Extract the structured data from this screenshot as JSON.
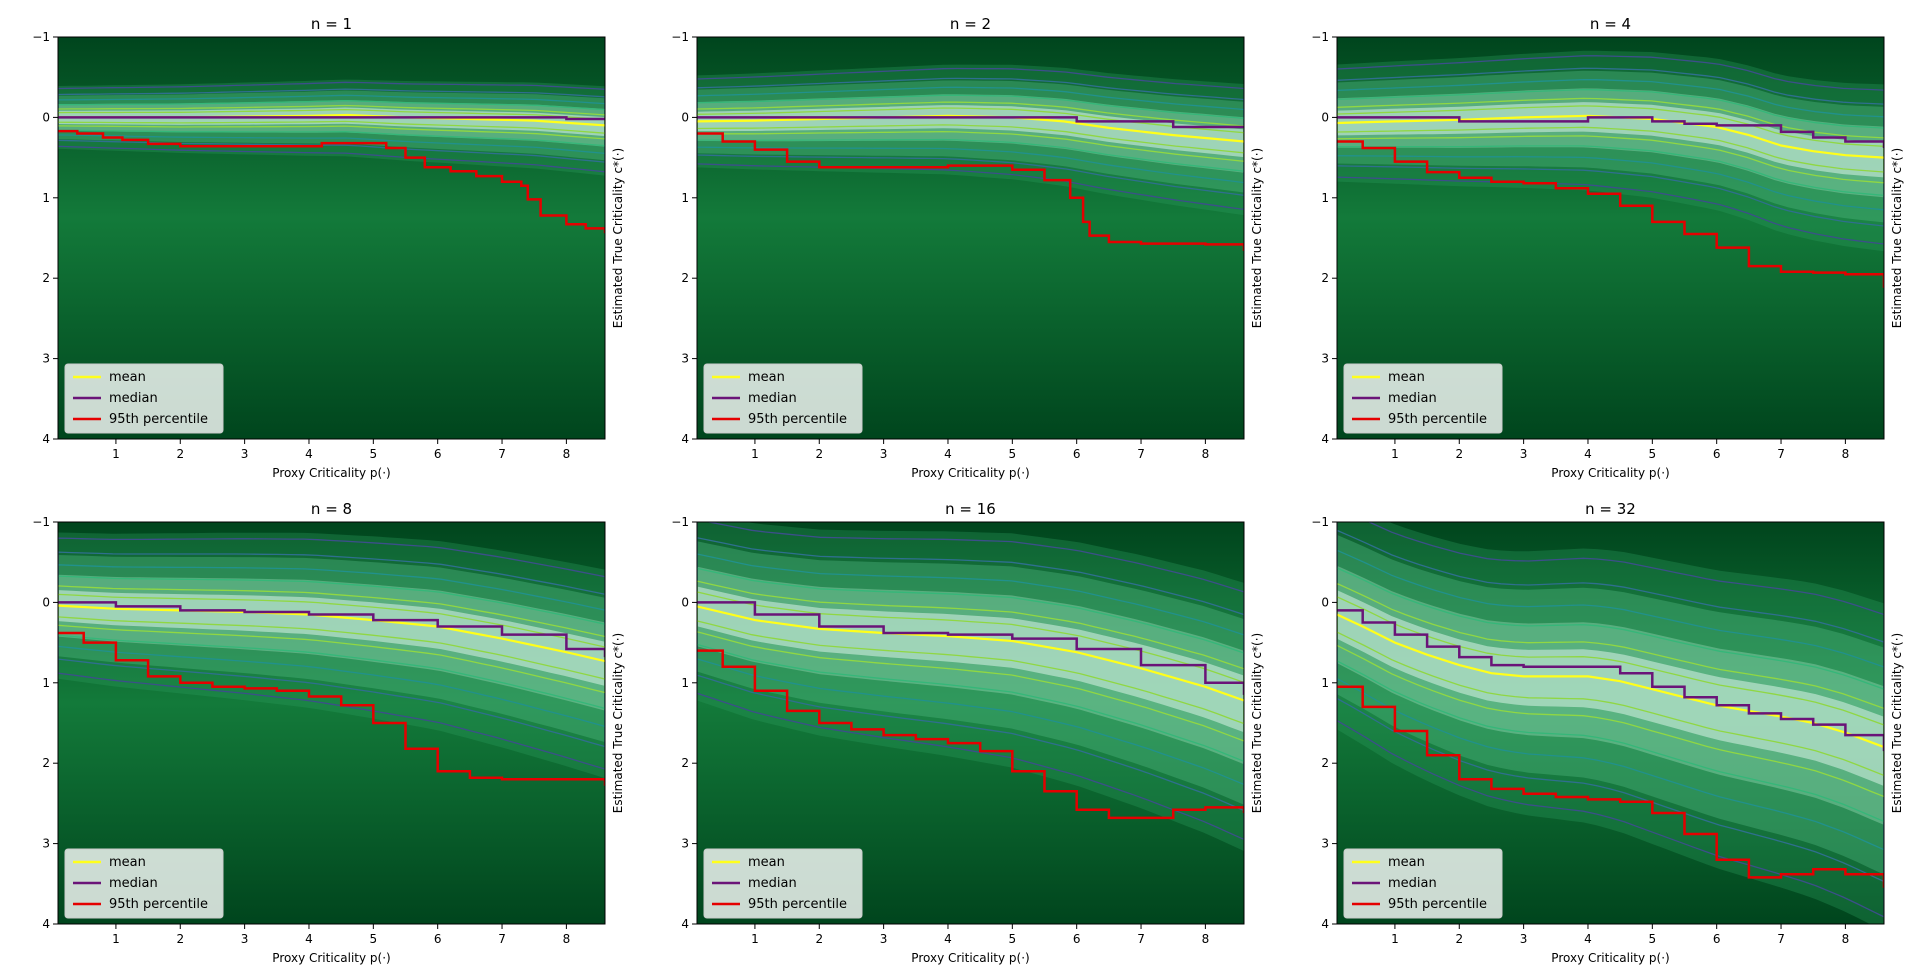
{
  "figure": {
    "colors": {
      "mean": "#ffff1a",
      "median": "#6a1478",
      "p95": "#e50000",
      "bg_dark": "#00451d",
      "bg_mid": "#137a3a",
      "bg_light": "#cdeee0",
      "contour": [
        "#3c4f8a",
        "#2f6f8e",
        "#21918c",
        "#35b779",
        "#90d743"
      ]
    }
  },
  "chart_data": [
    {
      "type": "heatmap",
      "title": "n = 1",
      "xlabel": "Proxy Criticality p(·)",
      "ylabel": "Estimated True Criticality c*(·)",
      "xlim": [
        0.1,
        8.6
      ],
      "ylim": [
        4,
        -1
      ],
      "xticks": [
        "1",
        "2",
        "3",
        "4",
        "5",
        "6",
        "7",
        "8"
      ],
      "yticks": [
        "−1",
        "0",
        "1",
        "2",
        "3",
        "4"
      ],
      "legend": [
        "mean",
        "median",
        "95th percentile"
      ],
      "band_spread": 0.15,
      "series": [
        {
          "name": "mean",
          "x": [
            0.1,
            1,
            2,
            3,
            4,
            4.6,
            5.5,
            6.5,
            7.5,
            8.6
          ],
          "values": [
            0,
            0,
            0,
            -0.01,
            -0.02,
            -0.03,
            0,
            0.02,
            0.04,
            0.1
          ]
        },
        {
          "name": "median",
          "x": [
            0.1,
            2,
            4,
            6,
            8,
            8.6
          ],
          "values": [
            0,
            0,
            0,
            0,
            0.02,
            0.02
          ]
        },
        {
          "name": "95th percentile",
          "x": [
            0.1,
            0.4,
            0.8,
            1.1,
            1.5,
            2,
            3,
            4,
            4.2,
            5,
            5.2,
            5.5,
            5.8,
            6.2,
            6.6,
            7,
            7.3,
            7.4,
            7.6,
            8,
            8.3,
            8.6
          ],
          "values": [
            0.17,
            0.2,
            0.25,
            0.28,
            0.33,
            0.36,
            0.36,
            0.36,
            0.32,
            0.32,
            0.38,
            0.5,
            0.62,
            0.67,
            0.73,
            0.8,
            0.85,
            1.02,
            1.22,
            1.33,
            1.38,
            1.44
          ]
        }
      ]
    },
    {
      "type": "heatmap",
      "title": "n = 2",
      "xlabel": "Proxy Criticality p(·)",
      "ylabel": "Estimated True Criticality c*(·)",
      "xlim": [
        0.1,
        8.6
      ],
      "ylim": [
        4,
        -1
      ],
      "xticks": [
        "1",
        "2",
        "3",
        "4",
        "5",
        "6",
        "7",
        "8"
      ],
      "yticks": [
        "−1",
        "0",
        "1",
        "2",
        "3",
        "4"
      ],
      "legend": [
        "mean",
        "median",
        "95th percentile"
      ],
      "band_spread": 0.22,
      "series": [
        {
          "name": "mean",
          "x": [
            0.1,
            1,
            2,
            3,
            4,
            5,
            5.8,
            6.5,
            7.5,
            8.6
          ],
          "values": [
            0.05,
            0.04,
            0.02,
            0,
            -0.02,
            0,
            0.05,
            0.13,
            0.22,
            0.3
          ]
        },
        {
          "name": "median",
          "x": [
            0.1,
            2,
            4,
            5.8,
            6,
            7.5,
            8.6
          ],
          "values": [
            0,
            0,
            0,
            0,
            0.05,
            0.12,
            0.12
          ]
        },
        {
          "name": "95th percentile",
          "x": [
            0.1,
            0.5,
            1,
            1.5,
            2,
            3,
            4,
            4.5,
            5,
            5.5,
            5.9,
            6.1,
            6.2,
            6.5,
            7,
            7.5,
            8,
            8.6
          ],
          "values": [
            0.2,
            0.3,
            0.4,
            0.55,
            0.62,
            0.62,
            0.6,
            0.6,
            0.65,
            0.78,
            1.0,
            1.3,
            1.47,
            1.55,
            1.57,
            1.57,
            1.58,
            1.66
          ]
        }
      ]
    },
    {
      "type": "heatmap",
      "title": "n = 4",
      "xlabel": "Proxy Criticality p(·)",
      "ylabel": "Estimated True Criticality c*(·)",
      "xlim": [
        0.1,
        8.6
      ],
      "ylim": [
        4,
        -1
      ],
      "xticks": [
        "1",
        "2",
        "3",
        "4",
        "5",
        "6",
        "7",
        "8"
      ],
      "yticks": [
        "−1",
        "0",
        "1",
        "2",
        "3",
        "4"
      ],
      "legend": [
        "mean",
        "median",
        "95th percentile"
      ],
      "band_spread": 0.28,
      "series": [
        {
          "name": "mean",
          "x": [
            0.1,
            1,
            2,
            3,
            4,
            5,
            6,
            6.5,
            7,
            7.5,
            8,
            8.6
          ],
          "values": [
            0.07,
            0.05,
            0.03,
            0,
            -0.02,
            0.02,
            0.12,
            0.22,
            0.35,
            0.42,
            0.47,
            0.5
          ]
        },
        {
          "name": "median",
          "x": [
            0.1,
            1,
            1.7,
            2,
            3,
            4,
            5,
            5.5,
            6,
            7,
            7.5,
            8,
            8.6
          ],
          "values": [
            0,
            0,
            0,
            0.05,
            0.05,
            0,
            0.05,
            0.08,
            0.1,
            0.18,
            0.25,
            0.3,
            0.38
          ]
        },
        {
          "name": "95th percentile",
          "x": [
            0.1,
            0.5,
            1,
            1.5,
            2,
            2.5,
            3,
            3.5,
            4,
            4.5,
            5,
            5.5,
            6,
            6.5,
            7,
            7.5,
            8,
            8.6
          ],
          "values": [
            0.3,
            0.38,
            0.55,
            0.68,
            0.75,
            0.8,
            0.82,
            0.88,
            0.95,
            1.1,
            1.3,
            1.45,
            1.62,
            1.85,
            1.92,
            1.93,
            1.95,
            2.12
          ]
        }
      ]
    },
    {
      "type": "heatmap",
      "title": "n = 8",
      "xlabel": "Proxy Criticality p(·)",
      "ylabel": "Estimated True Criticality c*(·)",
      "xlim": [
        0.1,
        8.6
      ],
      "ylim": [
        4,
        -1
      ],
      "xticks": [
        "1",
        "2",
        "3",
        "4",
        "5",
        "6",
        "7",
        "8"
      ],
      "yticks": [
        "−1",
        "0",
        "1",
        "2",
        "3",
        "4"
      ],
      "legend": [
        "mean",
        "median",
        "95th percentile"
      ],
      "band_spread": 0.35,
      "series": [
        {
          "name": "mean",
          "x": [
            0.1,
            1,
            2,
            3,
            4,
            5,
            6,
            7,
            8,
            8.6
          ],
          "values": [
            0.04,
            0.08,
            0.1,
            0.12,
            0.15,
            0.22,
            0.3,
            0.45,
            0.62,
            0.73
          ]
        },
        {
          "name": "median",
          "x": [
            0.1,
            1,
            2,
            3,
            4,
            5,
            6,
            7,
            8,
            8.6
          ],
          "values": [
            0,
            0.05,
            0.1,
            0.12,
            0.15,
            0.22,
            0.3,
            0.4,
            0.58,
            0.68
          ]
        },
        {
          "name": "95th percentile",
          "x": [
            0.1,
            0.5,
            1,
            1.5,
            2,
            2.5,
            3,
            3.5,
            4,
            4.5,
            5,
            5.5,
            6,
            6.5,
            7,
            7.5,
            8,
            8.6
          ],
          "values": [
            0.38,
            0.5,
            0.72,
            0.92,
            1.0,
            1.05,
            1.07,
            1.1,
            1.17,
            1.28,
            1.5,
            1.82,
            2.1,
            2.18,
            2.2,
            2.2,
            2.2,
            2.28
          ]
        }
      ]
    },
    {
      "type": "heatmap",
      "title": "n = 16",
      "xlabel": "Proxy Criticality p(·)",
      "ylabel": "Estimated True Criticality c*(·)",
      "xlim": [
        0.1,
        8.6
      ],
      "ylim": [
        4,
        -1
      ],
      "xticks": [
        "1",
        "2",
        "3",
        "4",
        "5",
        "6",
        "7",
        "8"
      ],
      "yticks": [
        "−1",
        "0",
        "1",
        "2",
        "3",
        "4"
      ],
      "legend": [
        "mean",
        "median",
        "95th percentile"
      ],
      "band_spread": 0.45,
      "series": [
        {
          "name": "mean",
          "x": [
            0.1,
            1,
            2,
            3,
            4,
            5,
            6,
            7,
            8,
            8.6
          ],
          "values": [
            0.05,
            0.22,
            0.33,
            0.38,
            0.42,
            0.48,
            0.62,
            0.82,
            1.05,
            1.22
          ]
        },
        {
          "name": "median",
          "x": [
            0.1,
            1,
            2,
            3,
            4,
            5,
            6,
            7,
            8,
            8.6
          ],
          "values": [
            0,
            0.15,
            0.3,
            0.38,
            0.4,
            0.45,
            0.58,
            0.78,
            1.0,
            1.15
          ]
        },
        {
          "name": "95th percentile",
          "x": [
            0.1,
            0.5,
            1,
            1.5,
            2,
            2.5,
            3,
            3.5,
            4,
            4.5,
            5,
            5.5,
            6,
            6.5,
            7,
            7.5,
            8,
            8.6
          ],
          "values": [
            0.6,
            0.8,
            1.1,
            1.35,
            1.5,
            1.58,
            1.65,
            1.7,
            1.75,
            1.85,
            2.1,
            2.35,
            2.58,
            2.68,
            2.68,
            2.58,
            2.55,
            2.62
          ]
        }
      ]
    },
    {
      "type": "heatmap",
      "title": "n = 32",
      "xlabel": "Proxy Criticality p(·)",
      "ylabel": "Estimated True Criticality c*(·)",
      "xlim": [
        0.1,
        8.6
      ],
      "ylim": [
        4,
        -1
      ],
      "xticks": [
        "1",
        "2",
        "3",
        "4",
        "5",
        "6",
        "7",
        "8"
      ],
      "yticks": [
        "−1",
        "0",
        "1",
        "2",
        "3",
        "4"
      ],
      "legend": [
        "mean",
        "median",
        "95th percentile"
      ],
      "band_spread": 0.55,
      "series": [
        {
          "name": "mean",
          "x": [
            0.1,
            0.5,
            1,
            1.5,
            2,
            2.5,
            3,
            3.5,
            4,
            4.5,
            5,
            5.5,
            6,
            6.5,
            7,
            7.5,
            8,
            8.6
          ],
          "values": [
            0.15,
            0.3,
            0.5,
            0.65,
            0.78,
            0.88,
            0.92,
            0.92,
            0.92,
            0.98,
            1.08,
            1.18,
            1.28,
            1.35,
            1.42,
            1.5,
            1.62,
            1.8
          ]
        },
        {
          "name": "median",
          "x": [
            0.1,
            0.5,
            1,
            1.5,
            2,
            2.5,
            3,
            3.5,
            4,
            4.5,
            5,
            5.5,
            6,
            6.5,
            7,
            7.5,
            8,
            8.6
          ],
          "values": [
            0.1,
            0.25,
            0.4,
            0.55,
            0.68,
            0.78,
            0.8,
            0.8,
            0.8,
            0.88,
            1.05,
            1.18,
            1.28,
            1.38,
            1.45,
            1.52,
            1.65,
            1.85
          ]
        },
        {
          "name": "95th percentile",
          "x": [
            0.1,
            0.5,
            1,
            1.5,
            2,
            2.5,
            3,
            3.5,
            4,
            4.5,
            5,
            5.5,
            6,
            6.5,
            7,
            7.5,
            8,
            8.6
          ],
          "values": [
            1.05,
            1.3,
            1.6,
            1.9,
            2.2,
            2.32,
            2.38,
            2.42,
            2.45,
            2.48,
            2.62,
            2.88,
            3.2,
            3.42,
            3.38,
            3.32,
            3.38,
            3.55
          ]
        }
      ]
    }
  ]
}
